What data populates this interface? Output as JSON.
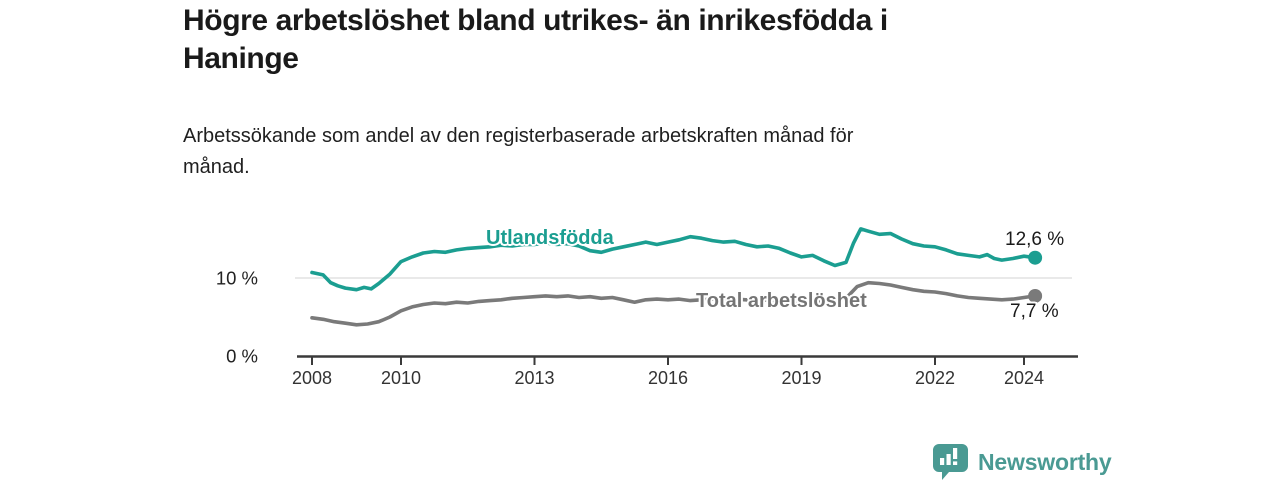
{
  "title": {
    "line1": "Högre arbetslöshet bland utrikes- än inrikesfödda i",
    "line2": "Haninge"
  },
  "subtitle": {
    "line1": "Arbetssökande som andel av den registerbaserade arbetskraften månad för",
    "line2": "månad."
  },
  "branding": {
    "logo_text": "Newsworthy",
    "logo_icon": "speech-bubble-bar-chart"
  },
  "colors": {
    "series_teal": "#1b9e91",
    "series_gray": "#7a7a7a",
    "series_label_gray": "#757575",
    "value_label_dark": "#1a1a1a",
    "axis_dark": "#3a3a3a",
    "tick_label": "#333333",
    "gridline_light": "#dcdcdc",
    "brand_teal": "#4a9a93",
    "background": "#ffffff"
  },
  "chart_data": {
    "type": "line",
    "title": "Högre arbetslöshet bland utrikes- än inrikesfödda i Haninge",
    "subtitle": "Arbetssökande som andel av den registerbaserade arbetskraften månad för månad.",
    "x_unit": "decimal_year",
    "y_unit": "percent",
    "xlim": [
      2008,
      2025.2
    ],
    "ylim": [
      0,
      17.5
    ],
    "grid": "horizontal, only at 10 %",
    "legend_position": "inline series labels on lines",
    "xticks": [
      {
        "value": 2008,
        "label": "2008"
      },
      {
        "value": 2010,
        "label": "2010"
      },
      {
        "value": 2013,
        "label": "2013"
      },
      {
        "value": 2016,
        "label": "2016"
      },
      {
        "value": 2019,
        "label": "2019"
      },
      {
        "value": 2022,
        "label": "2022"
      },
      {
        "value": 2024,
        "label": "2024"
      }
    ],
    "yticks": [
      {
        "value": 0,
        "label": "0 %"
      },
      {
        "value": 10,
        "label": "10 %"
      }
    ],
    "series": [
      {
        "name": "Utlandsfödda",
        "color": "#1b9e91",
        "end_label": "12,6 %",
        "end_value": 12.6,
        "points": [
          [
            2008.0,
            10.7
          ],
          [
            2008.25,
            10.4
          ],
          [
            2008.42,
            9.4
          ],
          [
            2008.58,
            9.0
          ],
          [
            2008.75,
            8.7
          ],
          [
            2009.0,
            8.5
          ],
          [
            2009.17,
            8.8
          ],
          [
            2009.33,
            8.6
          ],
          [
            2009.5,
            9.3
          ],
          [
            2009.75,
            10.5
          ],
          [
            2010.0,
            12.1
          ],
          [
            2010.25,
            12.7
          ],
          [
            2010.5,
            13.2
          ],
          [
            2010.75,
            13.4
          ],
          [
            2011.0,
            13.3
          ],
          [
            2011.25,
            13.6
          ],
          [
            2011.5,
            13.8
          ],
          [
            2011.75,
            13.9
          ],
          [
            2012.0,
            14.0
          ],
          [
            2012.25,
            14.2
          ],
          [
            2012.5,
            14.1
          ],
          [
            2012.75,
            14.3
          ],
          [
            2013.0,
            14.3
          ],
          [
            2013.25,
            14.5
          ],
          [
            2013.5,
            14.3
          ],
          [
            2013.75,
            14.4
          ],
          [
            2014.0,
            14.1
          ],
          [
            2014.25,
            13.5
          ],
          [
            2014.5,
            13.3
          ],
          [
            2014.75,
            13.7
          ],
          [
            2015.0,
            14.0
          ],
          [
            2015.25,
            14.3
          ],
          [
            2015.5,
            14.6
          ],
          [
            2015.75,
            14.3
          ],
          [
            2016.0,
            14.6
          ],
          [
            2016.25,
            14.9
          ],
          [
            2016.5,
            15.3
          ],
          [
            2016.75,
            15.1
          ],
          [
            2017.0,
            14.8
          ],
          [
            2017.25,
            14.6
          ],
          [
            2017.5,
            14.7
          ],
          [
            2017.75,
            14.3
          ],
          [
            2018.0,
            14.0
          ],
          [
            2018.25,
            14.1
          ],
          [
            2018.5,
            13.8
          ],
          [
            2018.75,
            13.2
          ],
          [
            2019.0,
            12.7
          ],
          [
            2019.25,
            12.9
          ],
          [
            2019.5,
            12.2
          ],
          [
            2019.75,
            11.6
          ],
          [
            2020.0,
            12.0
          ],
          [
            2020.17,
            14.5
          ],
          [
            2020.33,
            16.3
          ],
          [
            2020.5,
            16.0
          ],
          [
            2020.75,
            15.6
          ],
          [
            2021.0,
            15.7
          ],
          [
            2021.25,
            15.0
          ],
          [
            2021.5,
            14.4
          ],
          [
            2021.75,
            14.1
          ],
          [
            2022.0,
            14.0
          ],
          [
            2022.25,
            13.6
          ],
          [
            2022.5,
            13.1
          ],
          [
            2022.75,
            12.9
          ],
          [
            2023.0,
            12.7
          ],
          [
            2023.17,
            13.0
          ],
          [
            2023.33,
            12.5
          ],
          [
            2023.5,
            12.3
          ],
          [
            2023.75,
            12.5
          ],
          [
            2024.0,
            12.8
          ],
          [
            2024.25,
            12.6
          ]
        ]
      },
      {
        "name": "Total arbetslöshet",
        "color": "#7a7a7a",
        "end_label": "7,7 %",
        "end_value": 7.7,
        "points": [
          [
            2008.0,
            4.9
          ],
          [
            2008.25,
            4.7
          ],
          [
            2008.5,
            4.4
          ],
          [
            2008.75,
            4.2
          ],
          [
            2009.0,
            4.0
          ],
          [
            2009.25,
            4.1
          ],
          [
            2009.5,
            4.4
          ],
          [
            2009.75,
            5.0
          ],
          [
            2010.0,
            5.8
          ],
          [
            2010.25,
            6.3
          ],
          [
            2010.5,
            6.6
          ],
          [
            2010.75,
            6.8
          ],
          [
            2011.0,
            6.7
          ],
          [
            2011.25,
            6.9
          ],
          [
            2011.5,
            6.8
          ],
          [
            2011.75,
            7.0
          ],
          [
            2012.0,
            7.1
          ],
          [
            2012.25,
            7.2
          ],
          [
            2012.5,
            7.4
          ],
          [
            2012.75,
            7.5
          ],
          [
            2013.0,
            7.6
          ],
          [
            2013.25,
            7.7
          ],
          [
            2013.5,
            7.6
          ],
          [
            2013.75,
            7.7
          ],
          [
            2014.0,
            7.5
          ],
          [
            2014.25,
            7.6
          ],
          [
            2014.5,
            7.4
          ],
          [
            2014.75,
            7.5
          ],
          [
            2015.0,
            7.2
          ],
          [
            2015.25,
            6.9
          ],
          [
            2015.5,
            7.2
          ],
          [
            2015.75,
            7.3
          ],
          [
            2016.0,
            7.2
          ],
          [
            2016.25,
            7.3
          ],
          [
            2016.5,
            7.1
          ],
          [
            2016.75,
            7.2
          ],
          [
            2017.0,
            7.3
          ],
          [
            2017.25,
            7.2
          ],
          [
            2017.5,
            7.3
          ],
          [
            2017.75,
            7.2
          ],
          [
            2018.0,
            7.1
          ],
          [
            2018.25,
            7.2
          ],
          [
            2018.5,
            7.0
          ],
          [
            2018.75,
            6.9
          ],
          [
            2019.0,
            7.0
          ],
          [
            2019.25,
            7.1
          ],
          [
            2019.5,
            7.0
          ],
          [
            2019.75,
            6.9
          ],
          [
            2020.0,
            7.4
          ],
          [
            2020.25,
            8.9
          ],
          [
            2020.5,
            9.4
          ],
          [
            2020.75,
            9.3
          ],
          [
            2021.0,
            9.1
          ],
          [
            2021.25,
            8.8
          ],
          [
            2021.5,
            8.5
          ],
          [
            2021.75,
            8.3
          ],
          [
            2022.0,
            8.2
          ],
          [
            2022.25,
            8.0
          ],
          [
            2022.5,
            7.7
          ],
          [
            2022.75,
            7.5
          ],
          [
            2023.0,
            7.4
          ],
          [
            2023.25,
            7.3
          ],
          [
            2023.5,
            7.2
          ],
          [
            2023.75,
            7.3
          ],
          [
            2024.0,
            7.5
          ],
          [
            2024.25,
            7.7
          ]
        ]
      }
    ]
  }
}
